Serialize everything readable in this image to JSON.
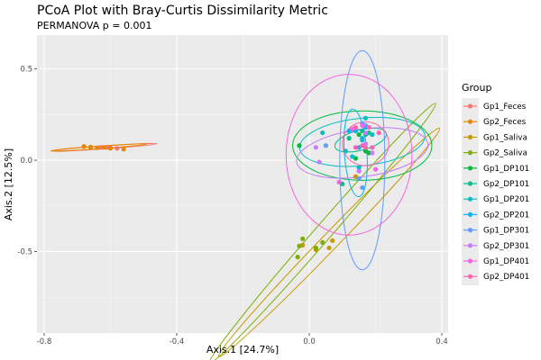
{
  "chart_data": {
    "type": "scatter",
    "title": "PCoA Plot with Bray-Curtis Dissimilarity Metric",
    "subtitle": "PERMANOVA p = 0.001",
    "xlabel": "Axis.1   [24.7%]",
    "ylabel": "Axis.2   [12.5%]",
    "xlim": [
      -0.82,
      0.42
    ],
    "ylim": [
      -0.94,
      0.68
    ],
    "xticks": [
      -0.8,
      -0.4,
      0.0,
      0.4
    ],
    "xtick_labels": [
      "-0.8",
      "-0.4",
      "0.0",
      "0.4"
    ],
    "yticks": [
      0.5,
      0.0,
      -0.5
    ],
    "ytick_labels": [
      "0.5",
      "0.0",
      "-0.5"
    ],
    "grid": true,
    "legend": {
      "title": "Group",
      "position": "right"
    },
    "series": [
      {
        "name": "Gp1_Feces",
        "color": "#F8766D",
        "points": [
          [
            -0.61,
            0.07
          ],
          [
            -0.63,
            0.07
          ],
          [
            -0.58,
            0.065
          ],
          [
            -0.6,
            0.068
          ]
        ],
        "ellipse": {
          "cx": -0.62,
          "cy": 0.07,
          "rx": 0.16,
          "ry": 0.008,
          "angle": -4
        }
      },
      {
        "name": "Gp2_Feces",
        "color": "#E58700",
        "points": [
          [
            -0.68,
            0.075
          ],
          [
            -0.66,
            0.072
          ],
          [
            -0.64,
            0.068
          ],
          [
            -0.6,
            0.065
          ],
          [
            -0.56,
            0.06
          ],
          [
            -0.62,
            0.07
          ]
        ],
        "ellipse": {
          "cx": -0.635,
          "cy": 0.07,
          "rx": 0.145,
          "ry": 0.007,
          "angle": -4
        }
      },
      {
        "name": "Gp1_Saliva",
        "color": "#C99800",
        "points": [
          [
            -0.02,
            -0.465
          ],
          [
            0.02,
            -0.49
          ],
          [
            0.07,
            -0.44
          ],
          [
            0.06,
            -0.48
          ],
          [
            0.14,
            -0.09
          ]
        ],
        "ellipse": {
          "cx": 0.06,
          "cy": -0.45,
          "rx": 0.48,
          "ry": 0.045,
          "angle": -46
        }
      },
      {
        "name": "Gp2_Saliva",
        "color": "#7CAE00",
        "points": [
          [
            -0.02,
            -0.43
          ],
          [
            -0.03,
            -0.47
          ],
          [
            0.02,
            -0.48
          ],
          [
            -0.035,
            -0.53
          ],
          [
            0.04,
            -0.45
          ]
        ],
        "ellipse": {
          "cx": 0.04,
          "cy": -0.4,
          "rx": 0.52,
          "ry": 0.045,
          "angle": -49
        }
      },
      {
        "name": "Gp1_DP101",
        "color": "#00BA38",
        "points": [
          [
            -0.03,
            0.08
          ],
          [
            0.14,
            0.01
          ],
          [
            0.15,
            0.14
          ],
          [
            0.18,
            0.04
          ],
          [
            0.17,
            0.05
          ]
        ],
        "ellipse": {
          "cx": 0.16,
          "cy": 0.08,
          "rx": 0.21,
          "ry": 0.19,
          "angle": 0
        }
      },
      {
        "name": "Gp2_DP101",
        "color": "#00C08B",
        "points": [
          [
            0.12,
            0.12
          ],
          [
            0.16,
            0.16
          ],
          [
            0.17,
            0.14
          ],
          [
            0.18,
            0.15
          ],
          [
            0.1,
            -0.13
          ]
        ],
        "ellipse": {
          "cx": 0.155,
          "cy": 0.11,
          "rx": 0.08,
          "ry": 0.055,
          "angle": -15
        }
      },
      {
        "name": "Gp1_DP201",
        "color": "#00BFC4",
        "points": [
          [
            0.04,
            0.15
          ],
          [
            0.11,
            0.05
          ],
          [
            0.13,
            0.17
          ],
          [
            0.16,
            0.11
          ],
          [
            0.19,
            0.14
          ],
          [
            0.17,
            0.23
          ],
          [
            0.15,
            -0.04
          ],
          [
            0.13,
            0.02
          ]
        ],
        "ellipse": {
          "cx": 0.16,
          "cy": 0.1,
          "rx": 0.19,
          "ry": 0.13,
          "angle": -6
        }
      },
      {
        "name": "Gp2_DP201",
        "color": "#00B4F0",
        "points": [
          [
            0.14,
            0.16
          ],
          [
            0.17,
            0.18
          ],
          [
            0.16,
            0.12
          ],
          [
            0.12,
            0.16
          ],
          [
            0.15,
            0.07
          ]
        ],
        "ellipse": {
          "cx": 0.14,
          "cy": 0.04,
          "rx": 0.034,
          "ry": 0.24,
          "angle": -4
        }
      },
      {
        "name": "Gp1_DP301",
        "color": "#619CFF",
        "points": [
          [
            0.05,
            0.08
          ],
          [
            0.15,
            -0.1
          ],
          [
            0.16,
            0.2
          ],
          [
            0.16,
            -0.15
          ],
          [
            0.17,
            0.19
          ]
        ],
        "ellipse": {
          "cx": 0.16,
          "cy": 0.0,
          "rx": 0.068,
          "ry": 0.6,
          "angle": 0
        }
      },
      {
        "name": "Gp2_DP301",
        "color": "#C77CFF",
        "points": [
          [
            0.02,
            0.07
          ],
          [
            0.03,
            -0.01
          ],
          [
            0.17,
            0.15
          ],
          [
            0.19,
            0.04
          ],
          [
            0.15,
            -0.06
          ],
          [
            0.17,
            0.09
          ]
        ],
        "ellipse": {
          "cx": 0.16,
          "cy": 0.04,
          "rx": 0.2,
          "ry": 0.13,
          "angle": -8
        }
      },
      {
        "name": "Gp1_DP401",
        "color": "#F564E3",
        "points": [
          [
            0.09,
            -0.12
          ],
          [
            0.2,
            -0.05
          ],
          [
            0.13,
            0.17
          ],
          [
            0.16,
            0.19
          ]
        ],
        "ellipse": {
          "cx": 0.12,
          "cy": 0.03,
          "rx": 0.19,
          "ry": 0.44,
          "angle": 0
        }
      },
      {
        "name": "Gp2_DP401",
        "color": "#FF64B0",
        "points": [
          [
            0.14,
            0.07
          ],
          [
            0.16,
            0.08
          ],
          [
            0.17,
            0.07
          ],
          [
            0.19,
            0.07
          ],
          [
            0.21,
            0.15
          ],
          [
            0.18,
            0.18
          ],
          [
            0.14,
            0.18
          ]
        ],
        "ellipse": {
          "cx": 0.17,
          "cy": 0.09,
          "rx": 0.07,
          "ry": 0.12,
          "angle": 0
        }
      }
    ]
  }
}
